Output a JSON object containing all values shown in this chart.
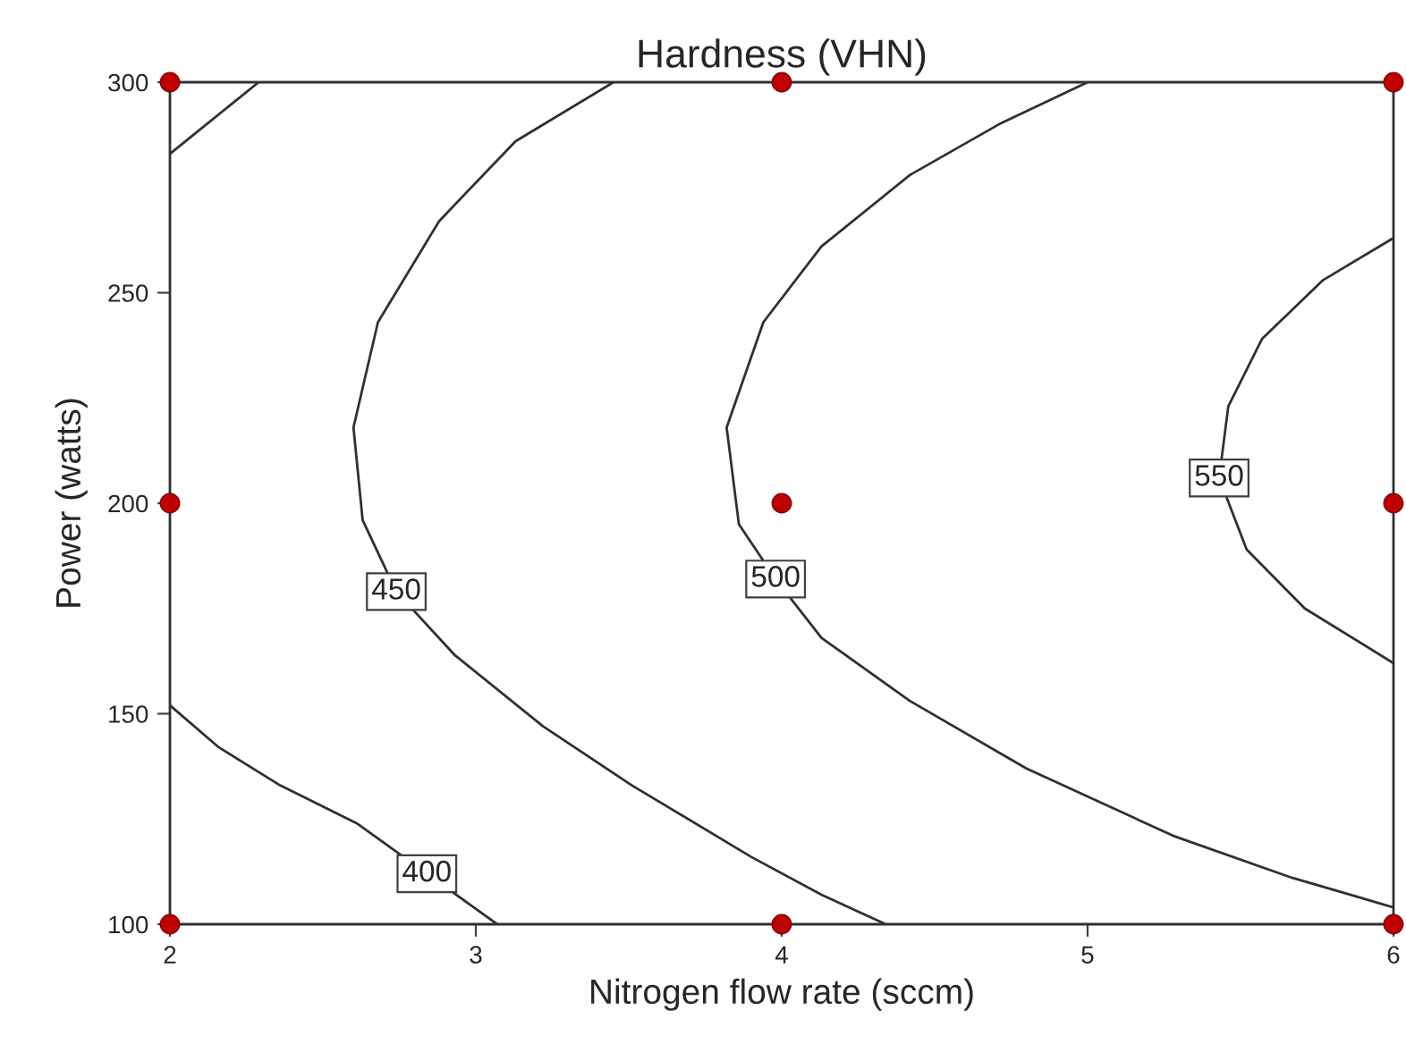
{
  "chart_data": {
    "type": "line",
    "title": "Hardness (VHN)",
    "xlabel": "Nitrogen flow rate (sccm)",
    "ylabel": "Power (watts)",
    "xlim": [
      2,
      6
    ],
    "ylim": [
      100,
      300
    ],
    "xticks": [
      2,
      3,
      4,
      5,
      6
    ],
    "yticks": [
      100,
      150,
      200,
      250,
      300
    ],
    "grid": false,
    "legend": false,
    "series": [
      {
        "name": "400",
        "color": "#303030",
        "x": [
          2.0,
          2.16,
          2.36,
          2.61,
          2.84,
          3.07,
          2.1,
          2.0,
          2.29
        ],
        "values": [
          152,
          142,
          133,
          124,
          112,
          100,
          null,
          283,
          300
        ]
      },
      {
        "name": "450",
        "color": "#303030",
        "x": [
          3.45,
          3.13,
          2.88,
          2.68,
          2.6,
          2.63,
          2.74,
          2.93,
          3.22,
          3.51,
          3.9,
          4.13,
          4.34
        ],
        "values": [
          300,
          286,
          267,
          243,
          218,
          196,
          179,
          164,
          147,
          133,
          116,
          107,
          100
        ]
      },
      {
        "name": "500",
        "color": "#303030",
        "x": [
          5.0,
          4.71,
          4.42,
          4.13,
          3.94,
          3.82,
          3.86,
          3.98,
          4.13,
          4.42,
          4.8,
          5.28,
          5.67,
          6.0
        ],
        "values": [
          300,
          290,
          278,
          261,
          243,
          218,
          195,
          182,
          168,
          153,
          137,
          121,
          111,
          104
        ]
      },
      {
        "name": "550",
        "color": "#303030",
        "x": [
          6.0,
          5.77,
          5.57,
          5.46,
          5.43,
          5.52,
          5.71,
          6.0
        ],
        "values": [
          263,
          253,
          239,
          223,
          206,
          189,
          175,
          162
        ]
      },
      {
        "type": "scatter",
        "color": "#c00000",
        "marker": "circle",
        "x": [
          2,
          4,
          6,
          2,
          4,
          6,
          2,
          4,
          6
        ],
        "values": [
          300,
          300,
          300,
          200,
          200,
          200,
          100,
          100,
          100
        ]
      }
    ]
  }
}
